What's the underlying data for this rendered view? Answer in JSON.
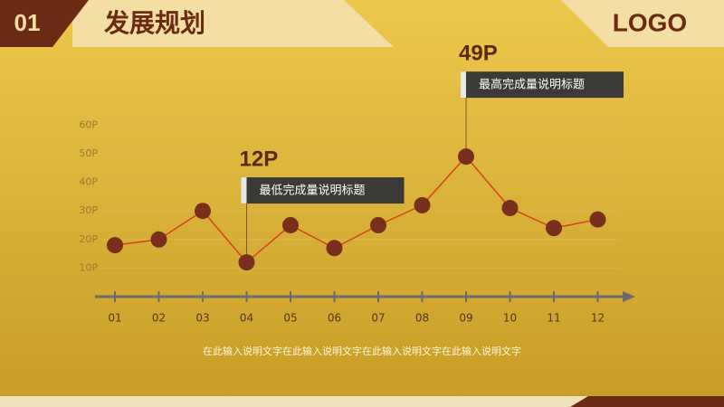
{
  "header": {
    "number": "01",
    "title": "发展规划",
    "logo": "LOGO"
  },
  "chart_data": {
    "type": "line",
    "categories": [
      "01",
      "02",
      "03",
      "04",
      "05",
      "06",
      "07",
      "08",
      "09",
      "10",
      "11",
      "12"
    ],
    "values": [
      18,
      20,
      30,
      12,
      25,
      17,
      25,
      32,
      49,
      31,
      24,
      27
    ],
    "value_labels": [
      null,
      null,
      null,
      "12P",
      null,
      null,
      null,
      null,
      "49P",
      null,
      null,
      null
    ],
    "callout_texts": [
      null,
      null,
      null,
      "最低完成量说明标题",
      null,
      null,
      null,
      null,
      "最高完成量说明标题",
      null,
      null,
      null
    ],
    "color": "#d9401e",
    "marker_color": "#7a2e1c",
    "ylim": [
      0,
      60
    ],
    "yticks": [
      {
        "value": 10,
        "label": "10P"
      },
      {
        "value": 20,
        "label": "20P"
      },
      {
        "value": 30,
        "label": "30P"
      },
      {
        "value": 40,
        "label": "40P"
      },
      {
        "value": 50,
        "label": "50P"
      },
      {
        "value": 60,
        "label": "60P"
      }
    ],
    "grid": true
  },
  "caption": "在此输入说明文字在此输入说明文字在此输入说明文字在此输入说明文字"
}
